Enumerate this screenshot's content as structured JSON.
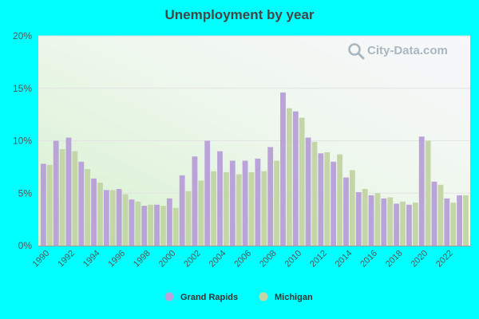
{
  "chart_data": {
    "type": "bar",
    "title": "Unemployment by year",
    "x": [
      1990,
      1991,
      1992,
      1993,
      1994,
      1995,
      1996,
      1997,
      1998,
      1999,
      2000,
      2001,
      2002,
      2003,
      2004,
      2005,
      2006,
      2007,
      2008,
      2009,
      2010,
      2011,
      2012,
      2013,
      2014,
      2015,
      2016,
      2017,
      2018,
      2019,
      2020,
      2021,
      2022,
      2023
    ],
    "x_tick_labels": [
      "1990",
      "1992",
      "1994",
      "1996",
      "1998",
      "2000",
      "2002",
      "2004",
      "2006",
      "2008",
      "2010",
      "2012",
      "2014",
      "2016",
      "2018",
      "2020",
      "2022"
    ],
    "y_tick_labels": [
      "0%",
      "5%",
      "10%",
      "15%",
      "20%"
    ],
    "ylim": [
      0,
      20
    ],
    "grid": true,
    "legend_position": "bottom-center",
    "series": [
      {
        "name": "Grand Rapids",
        "color": "#b9a3d8",
        "values": [
          7.8,
          10.0,
          10.3,
          8.0,
          6.4,
          5.3,
          5.4,
          4.4,
          3.8,
          3.9,
          4.5,
          6.7,
          8.5,
          10.0,
          9.0,
          8.1,
          8.1,
          8.3,
          9.4,
          14.6,
          12.8,
          10.3,
          8.8,
          8.0,
          6.5,
          5.1,
          4.8,
          4.5,
          4.0,
          3.9,
          10.4,
          6.1,
          4.5,
          4.8
        ]
      },
      {
        "name": "Michigan",
        "color": "#c4d6a8",
        "values": [
          7.7,
          9.2,
          9.0,
          7.3,
          6.0,
          5.3,
          4.9,
          4.2,
          3.9,
          3.8,
          3.6,
          5.2,
          6.2,
          7.1,
          7.0,
          6.8,
          7.0,
          7.1,
          8.1,
          13.1,
          12.2,
          9.9,
          8.9,
          8.7,
          7.2,
          5.4,
          5.0,
          4.6,
          4.2,
          4.1,
          10.0,
          5.8,
          4.1,
          4.8
        ]
      }
    ]
  },
  "watermark": {
    "text": "City-Data.com",
    "icon": "magnifier-icon"
  }
}
